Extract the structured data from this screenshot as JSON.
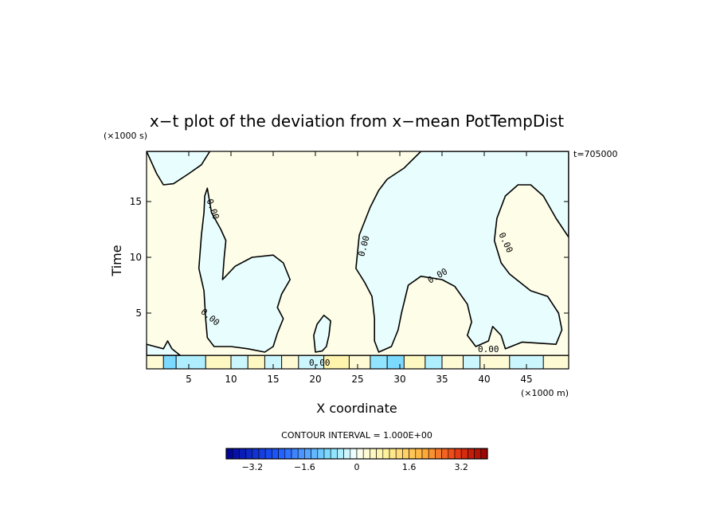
{
  "chart_data": {
    "type": "heatmap",
    "title": "x−t plot of the deviation from x−mean PotTempDist",
    "xlabel": "X coordinate",
    "ylabel": "Time",
    "x_unit": "(×1000 m)",
    "y_unit": "(×1000 s)",
    "time_label": "t=705000",
    "xlim": [
      0,
      50
    ],
    "ylim": [
      0,
      19.5
    ],
    "x_ticks": [
      5,
      10,
      15,
      20,
      25,
      30,
      35,
      40,
      45
    ],
    "y_ticks": [
      5,
      10,
      15
    ],
    "contour_label": "0.00",
    "contour_interval_text": "CONTOUR INTERVAL = 1.000E+00",
    "colorbar": {
      "min": -4,
      "max": 4,
      "step": 0.2,
      "tick_values": [
        -3.2,
        -1.6,
        0,
        1.6,
        3.2
      ],
      "tick_labels": [
        "−3.2",
        "−1.6",
        "0",
        "1.6",
        "3.2"
      ]
    },
    "colors": {
      "positive_fill": "#fdfde8",
      "negative_fill": "#e8fdfd",
      "low_end": "#0000a0",
      "high_end": "#a00000"
    },
    "negative_regions": [
      [
        [
          0,
          19.5
        ],
        [
          1.2,
          17.5
        ],
        [
          2,
          16.5
        ],
        [
          3.2,
          16.6
        ],
        [
          5,
          17.5
        ],
        [
          6.5,
          18.3
        ],
        [
          7.5,
          19.5
        ]
      ],
      [
        [
          7.2,
          16.2
        ],
        [
          7.7,
          14
        ],
        [
          8.8,
          12.5
        ],
        [
          9.4,
          11.5
        ],
        [
          9.2,
          10
        ],
        [
          9,
          8
        ],
        [
          10.5,
          9.2
        ],
        [
          12.5,
          10
        ],
        [
          15,
          10.2
        ],
        [
          16.2,
          9.5
        ],
        [
          17,
          8
        ],
        [
          16,
          6.7
        ],
        [
          15.5,
          5.5
        ],
        [
          16.2,
          4.5
        ],
        [
          15.5,
          3.2
        ],
        [
          15,
          2
        ],
        [
          14,
          1.5
        ],
        [
          12,
          1.8
        ],
        [
          10,
          2
        ],
        [
          8,
          2
        ],
        [
          7.2,
          2.8
        ],
        [
          7,
          4.5
        ],
        [
          6.8,
          7
        ],
        [
          6.2,
          9
        ],
        [
          6.5,
          12
        ],
        [
          6.8,
          14
        ],
        [
          6.9,
          15.5
        ]
      ],
      [
        [
          24.8,
          9
        ],
        [
          25.2,
          12
        ],
        [
          26.5,
          14.5
        ],
        [
          27.5,
          16
        ],
        [
          28.5,
          17
        ],
        [
          30.5,
          18
        ],
        [
          32.5,
          19.5
        ],
        [
          50,
          19.5
        ],
        [
          50,
          11.8
        ],
        [
          48.5,
          13.5
        ],
        [
          47,
          15.5
        ],
        [
          45.5,
          16.5
        ],
        [
          44,
          16.5
        ],
        [
          42.5,
          15.5
        ],
        [
          41.5,
          13.5
        ],
        [
          41.2,
          11.5
        ],
        [
          42,
          9.5
        ],
        [
          43,
          8.5
        ],
        [
          45.5,
          7
        ],
        [
          47.5,
          6.5
        ],
        [
          48.8,
          5
        ],
        [
          49.2,
          3.5
        ],
        [
          48.5,
          2.2
        ],
        [
          44.5,
          2.4
        ],
        [
          42.5,
          1.8
        ],
        [
          42,
          3
        ],
        [
          41,
          3.8
        ],
        [
          40.5,
          2.5
        ],
        [
          39,
          2
        ],
        [
          38,
          3
        ],
        [
          38.5,
          4.2
        ],
        [
          38,
          5.8
        ],
        [
          36.5,
          7.4
        ],
        [
          35,
          8
        ],
        [
          32.5,
          8.3
        ],
        [
          31,
          7.5
        ],
        [
          30.2,
          5
        ],
        [
          29.8,
          3.5
        ],
        [
          29,
          2
        ],
        [
          27.5,
          1.5
        ],
        [
          27,
          2.5
        ],
        [
          27,
          4.5
        ],
        [
          26.7,
          6.5
        ],
        [
          25.8,
          7.8
        ]
      ],
      [
        [
          20,
          1.5
        ],
        [
          19.8,
          3
        ],
        [
          20.2,
          4
        ],
        [
          21,
          4.8
        ],
        [
          21.8,
          4.3
        ],
        [
          21.6,
          3
        ],
        [
          21.3,
          2
        ],
        [
          20.8,
          1.6
        ]
      ],
      [
        [
          0,
          2.2
        ],
        [
          1,
          2
        ],
        [
          2,
          1.8
        ],
        [
          2.5,
          2.5
        ],
        [
          3,
          1.8
        ],
        [
          4,
          1.2
        ],
        [
          0,
          1.2
        ]
      ]
    ],
    "strip": {
      "y_range": [
        0,
        1.2
      ],
      "segments": [
        {
          "x": [
            0,
            2
          ],
          "v": 0.3
        },
        {
          "x": [
            2,
            3.5
          ],
          "v": -0.9
        },
        {
          "x": [
            3.5,
            7
          ],
          "v": -0.5
        },
        {
          "x": [
            7,
            10
          ],
          "v": 0.4
        },
        {
          "x": [
            10,
            12
          ],
          "v": -0.3
        },
        {
          "x": [
            12,
            14
          ],
          "v": 0.5
        },
        {
          "x": [
            14,
            16
          ],
          "v": -0.4
        },
        {
          "x": [
            16,
            18
          ],
          "v": 0.3
        },
        {
          "x": [
            18,
            21
          ],
          "v": -0.3
        },
        {
          "x": [
            21,
            24
          ],
          "v": 0.8
        },
        {
          "x": [
            24,
            26.5
          ],
          "v": 0.3
        },
        {
          "x": [
            26.5,
            28.5
          ],
          "v": -0.7
        },
        {
          "x": [
            28.5,
            30.5
          ],
          "v": -0.9
        },
        {
          "x": [
            30.5,
            33
          ],
          "v": 0.4
        },
        {
          "x": [
            33,
            35
          ],
          "v": -0.6
        },
        {
          "x": [
            35,
            37.5
          ],
          "v": 0.3
        },
        {
          "x": [
            37.5,
            39.5
          ],
          "v": -0.3
        },
        {
          "x": [
            39.5,
            43
          ],
          "v": 0.3
        },
        {
          "x": [
            43,
            47
          ],
          "v": -0.3
        },
        {
          "x": [
            47,
            50
          ],
          "v": 0.2
        }
      ]
    }
  }
}
